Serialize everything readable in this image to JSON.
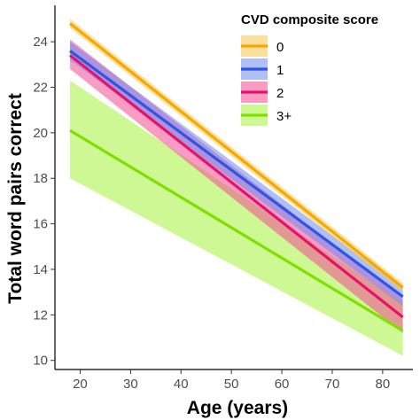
{
  "chart_data": {
    "type": "line",
    "xlabel": "Age (years)",
    "ylabel": "Total word pairs correct",
    "xlim": [
      15,
      86
    ],
    "ylim": [
      9.6,
      25.6
    ],
    "x_ticks": [
      20,
      30,
      40,
      50,
      60,
      70,
      80
    ],
    "y_ticks": [
      10,
      12,
      14,
      16,
      18,
      20,
      22,
      24
    ],
    "grid": false,
    "legend": {
      "title": "CVD composite score",
      "placement": "top-right"
    },
    "series": [
      {
        "name": "0",
        "color": "#F5A800",
        "band_color": "#F9C84F",
        "x": [
          18,
          84
        ],
        "y": [
          24.8,
          13.2
        ],
        "lower": [
          24.6,
          13.0
        ],
        "upper": [
          25.0,
          13.4
        ]
      },
      {
        "name": "1",
        "color": "#2E55E6",
        "band_color": "#6F8CF0",
        "x": [
          18,
          84
        ],
        "y": [
          23.6,
          12.8
        ],
        "lower": [
          23.2,
          12.4
        ],
        "upper": [
          24.0,
          13.2
        ]
      },
      {
        "name": "2",
        "color": "#E8106A",
        "band_color": "#F24A93",
        "x": [
          18,
          84
        ],
        "y": [
          23.4,
          11.9
        ],
        "lower": [
          22.8,
          11.2
        ],
        "upper": [
          24.1,
          12.7
        ]
      },
      {
        "name": "3+",
        "color": "#7FE000",
        "band_color": "#A6F23A",
        "x": [
          18,
          84
        ],
        "y": [
          20.1,
          11.3
        ],
        "lower": [
          18.0,
          10.2
        ],
        "upper": [
          22.3,
          12.5
        ]
      }
    ]
  }
}
